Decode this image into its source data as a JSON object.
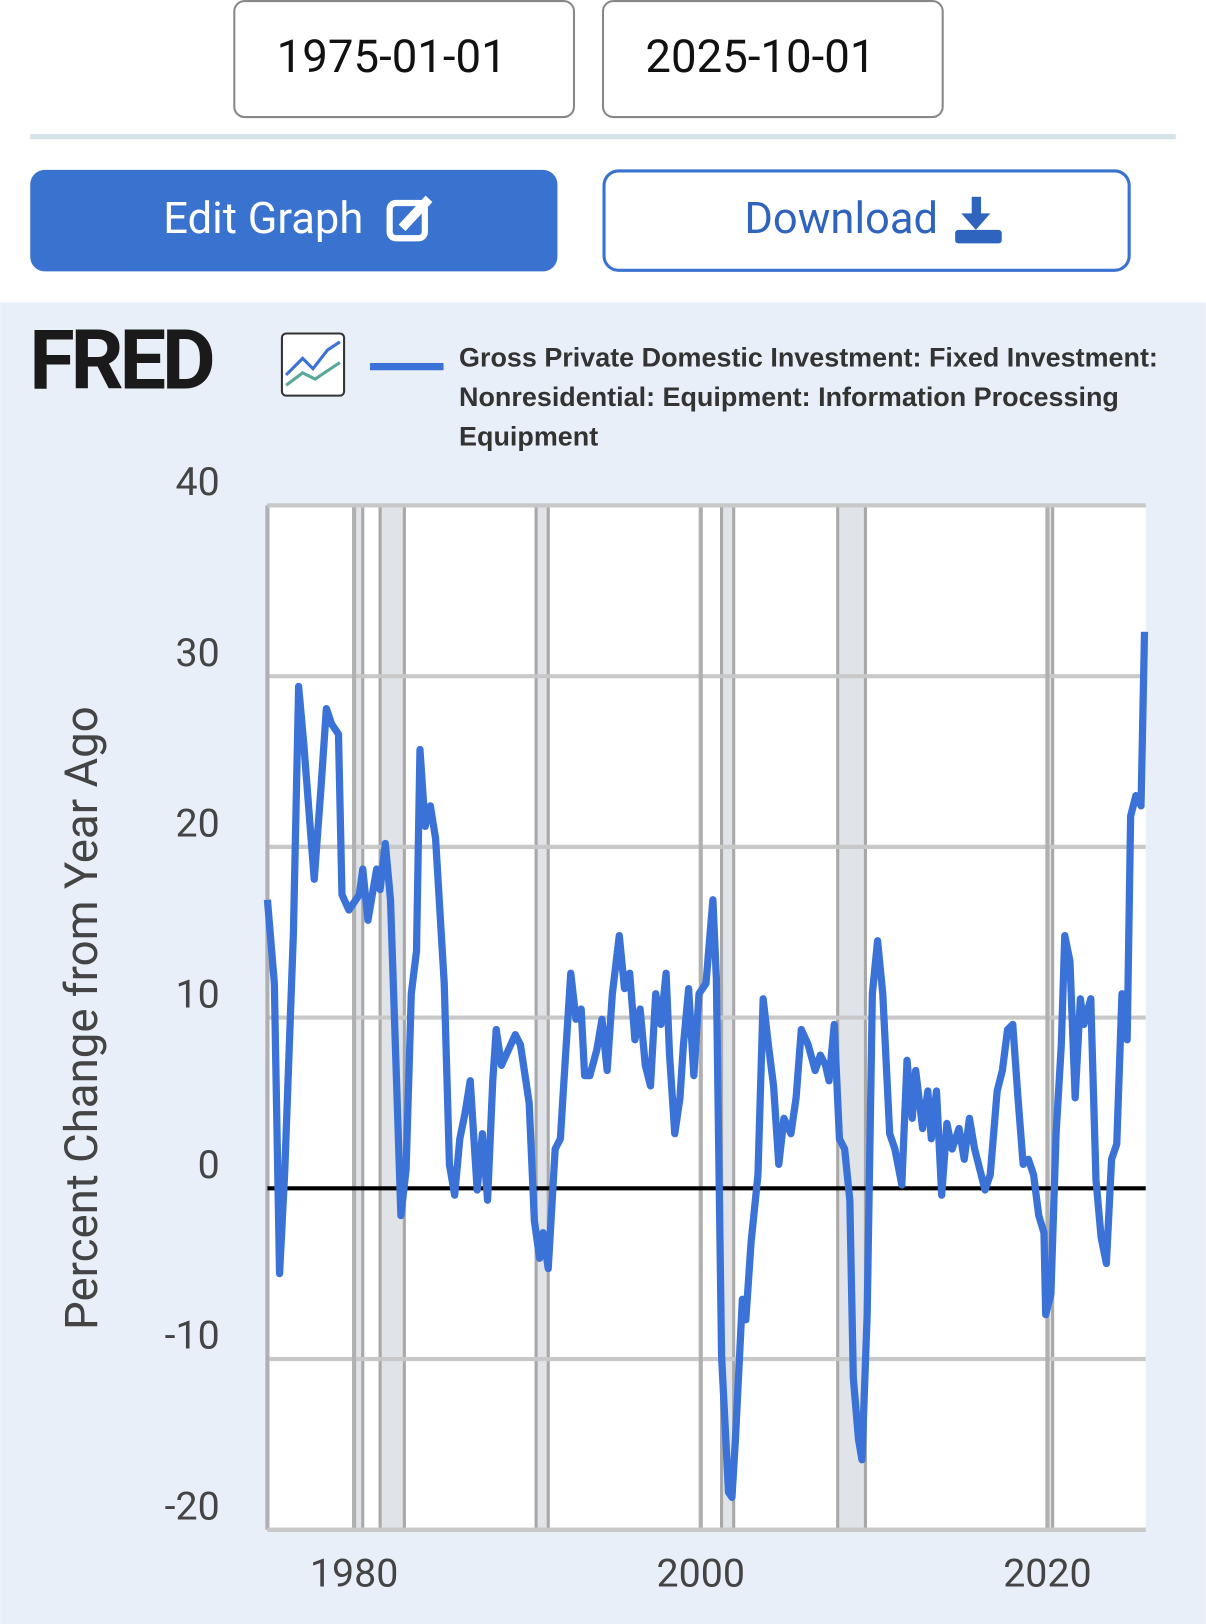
{
  "start_date": "1975-01-01",
  "end_date": "2025-10-01",
  "edit_button": "Edit Graph",
  "download_button": "Download",
  "logo": "FRED",
  "chart_data": {
    "type": "line",
    "y_label": "Percent Change from Year Ago",
    "xlim": [
      1975,
      2025.67
    ],
    "xticks": [
      1980,
      2000,
      2020
    ],
    "ylim": [
      -20,
      40
    ],
    "yticks": [
      40,
      30,
      20,
      10,
      0,
      -10,
      -20
    ],
    "grid": true,
    "recessions": [
      [
        1980.0,
        1980.5
      ],
      [
        1981.5,
        1982.9
      ],
      [
        1990.5,
        1991.2
      ],
      [
        2001.2,
        2001.9
      ],
      [
        2007.9,
        2009.5
      ],
      [
        2020.0,
        2020.3
      ]
    ],
    "series": [
      {
        "name": "Gross Private Domestic Investment: Fixed Investment: Nonresidential: Equipment: Information Processing Equipment",
        "color": "#3a72d8",
        "x": [
          1975.0,
          1975.4,
          1975.7,
          1976.0,
          1976.5,
          1976.8,
          1977.1,
          1977.7,
          1978.1,
          1978.4,
          1978.7,
          1979.1,
          1979.3,
          1979.7,
          1980.3,
          1980.5,
          1980.8,
          1981.3,
          1981.5,
          1981.8,
          1982.1,
          1982.4,
          1982.7,
          1983.0,
          1983.3,
          1983.6,
          1983.8,
          1984.1,
          1984.4,
          1984.7,
          1985.2,
          1985.5,
          1985.8,
          1986.1,
          1986.4,
          1986.7,
          1987.1,
          1987.4,
          1987.7,
          1988.0,
          1988.2,
          1988.5,
          1988.9,
          1989.3,
          1989.6,
          1990.1,
          1990.4,
          1990.7,
          1990.9,
          1991.2,
          1991.6,
          1991.9,
          1992.2,
          1992.5,
          1992.8,
          1993.1,
          1993.3,
          1993.6,
          1994.0,
          1994.3,
          1994.6,
          1994.9,
          1995.3,
          1995.6,
          1995.9,
          1996.2,
          1996.5,
          1996.8,
          1997.1,
          1997.4,
          1997.7,
          1998.0,
          1998.2,
          1998.5,
          1998.8,
          1999.0,
          1999.3,
          1999.6,
          1999.9,
          2000.3,
          2000.7,
          2000.9,
          2001.2,
          2001.6,
          2001.8,
          2002.0,
          2002.4,
          2002.6,
          2002.9,
          2003.3,
          2003.6,
          2003.9,
          2004.2,
          2004.5,
          2004.8,
          2005.2,
          2005.5,
          2005.8,
          2006.2,
          2006.6,
          2006.9,
          2007.2,
          2007.4,
          2007.7,
          2008.0,
          2008.3,
          2008.6,
          2008.8,
          2009.1,
          2009.3,
          2009.6,
          2009.9,
          2010.2,
          2010.5,
          2010.9,
          2011.2,
          2011.6,
          2011.9,
          2012.2,
          2012.4,
          2012.8,
          2013.1,
          2013.3,
          2013.6,
          2013.9,
          2014.2,
          2014.5,
          2014.9,
          2015.2,
          2015.5,
          2015.8,
          2016.1,
          2016.4,
          2016.7,
          2017.1,
          2017.4,
          2017.7,
          2018.0,
          2018.3,
          2018.6,
          2018.9,
          2019.2,
          2019.5,
          2019.8,
          2019.9,
          2020.2,
          2020.5,
          2020.8,
          2021.0,
          2021.3,
          2021.6,
          2021.9,
          2022.1,
          2022.5,
          2022.8,
          2023.1,
          2023.4,
          2023.7,
          2024.0,
          2024.3,
          2024.6,
          2024.8,
          2025.1,
          2025.4,
          2025.6
        ],
        "values": [
          16.9,
          12,
          -5,
          1,
          15,
          29.4,
          26,
          18.1,
          23.6,
          28.1,
          27.2,
          26.6,
          17.2,
          16.3,
          17.2,
          18.7,
          15.7,
          18.7,
          17.5,
          20.2,
          16.9,
          7.8,
          -1.6,
          1.1,
          11.4,
          13.9,
          25.7,
          21.2,
          22.4,
          20.5,
          12,
          1.4,
          -0.4,
          2.9,
          4.4,
          6.3,
          -0.1,
          3.2,
          -0.7,
          6.3,
          9.3,
          7.2,
          8.1,
          9,
          8.4,
          5,
          -1.9,
          -4.1,
          -2.6,
          -4.7,
          2.3,
          2.9,
          7.8,
          12.6,
          9.9,
          10.5,
          6.6,
          6.6,
          8.1,
          9.9,
          6.9,
          11.4,
          14.8,
          11.7,
          12.6,
          8.7,
          10.5,
          7.2,
          6,
          11.4,
          9.6,
          12.6,
          7.8,
          3.2,
          5.3,
          8.4,
          11.7,
          6.6,
          11.4,
          12,
          16.9,
          12.3,
          -9.8,
          -17.8,
          -18.1,
          -14.7,
          -6.5,
          -7.7,
          -3.2,
          0.8,
          11.1,
          8.4,
          6,
          1.4,
          4.1,
          3.2,
          5.3,
          9.3,
          8.4,
          6.9,
          7.8,
          7.2,
          6.3,
          9.6,
          2.9,
          2.3,
          -0.7,
          -11.1,
          -14.7,
          -15.9,
          -7.4,
          11.4,
          14.5,
          11.4,
          3.2,
          2.3,
          0.2,
          7.5,
          4.1,
          6.9,
          3.5,
          5.7,
          2.9,
          5.7,
          -0.4,
          3.8,
          2.3,
          3.5,
          1.7,
          4.1,
          2.3,
          1.1,
          -0.1,
          0.8,
          5.7,
          6.9,
          9.3,
          9.6,
          5.3,
          1.4,
          1.7,
          0.8,
          -1.6,
          -2.6,
          -7.4,
          -6.2,
          3.2,
          8.4,
          14.8,
          13.3,
          5.3,
          11.1,
          9.6,
          11.1,
          0.5,
          -2.9,
          -4.4,
          1.7,
          2.6,
          11.4,
          8.7,
          21.8,
          23,
          22.4,
          32.6
        ]
      }
    ]
  }
}
